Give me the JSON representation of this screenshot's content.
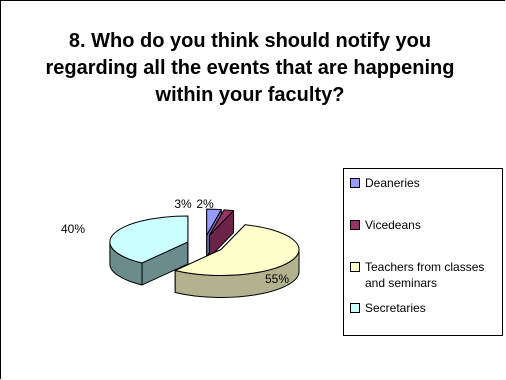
{
  "chart_data": {
    "type": "pie",
    "title": "8. Who do you think should notify you regarding all the events that are happening within your faculty?",
    "categories": [
      "Deaneries",
      "Vicedeans",
      "Teachers from classes and seminars",
      "Secretaries"
    ],
    "values": [
      3,
      2,
      55,
      40
    ],
    "data_labels": [
      "3%",
      "2%",
      "55%",
      "40%"
    ],
    "colors": [
      "#9999ff",
      "#993366",
      "#ffffcc",
      "#ccffff"
    ],
    "style": "3d-exploded",
    "legend_position": "right"
  }
}
